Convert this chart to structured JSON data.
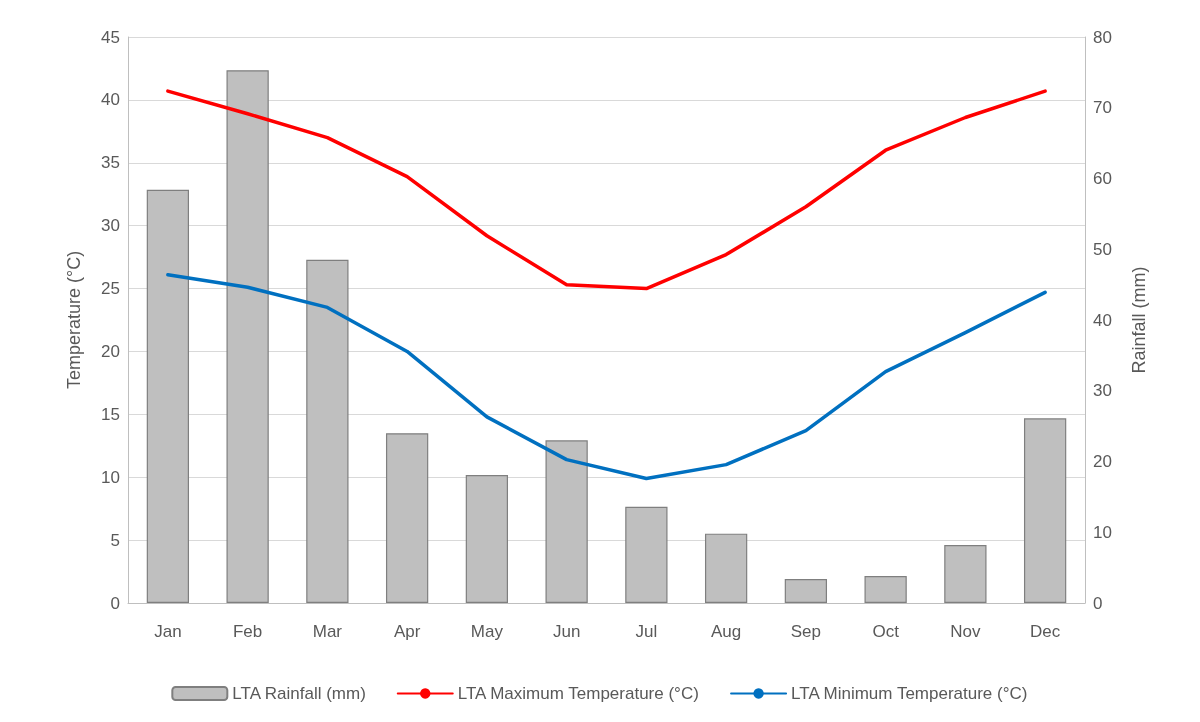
{
  "chart_data": {
    "type": "bar",
    "ylabel": "Temperature (°C)",
    "y2label": "Rainfall (mm)",
    "categories": [
      "Jan",
      "Feb",
      "Mar",
      "Apr",
      "May",
      "Jun",
      "Jul",
      "Aug",
      "Sep",
      "Oct",
      "Nov",
      "Dec"
    ],
    "series": [
      {
        "name": "LTA Rainfall (mm)",
        "axis": "y2",
        "color": "#bfbfbf",
        "values": [
          58.4,
          75.3,
          48.5,
          24.0,
          18.1,
          23.0,
          13.6,
          9.8,
          3.4,
          3.8,
          8.2,
          26.1
        ]
      },
      {
        "name": "LTA Maximum Temperature (°C)",
        "type": "line",
        "color": "#ff0000",
        "values": [
          40.7,
          38.9,
          37.0,
          33.9,
          29.2,
          25.3,
          25.0,
          27.7,
          31.5,
          36.0,
          38.6,
          40.7
        ]
      },
      {
        "name": "LTA Minimum Temperature (°C)",
        "type": "line",
        "color": "#0070c0",
        "values": [
          26.1,
          25.1,
          23.5,
          20.0,
          14.8,
          11.4,
          9.9,
          11.0,
          13.7,
          18.4,
          21.5,
          24.7
        ]
      }
    ],
    "ylim": [
      0,
      45
    ],
    "yticks": [
      0,
      5,
      10,
      15,
      20,
      25,
      30,
      35,
      40,
      45
    ],
    "y2lim": [
      0,
      80
    ],
    "y2ticks": [
      0,
      10,
      20,
      30,
      40,
      50,
      60,
      70,
      80
    ],
    "grid": "y",
    "legend": "bottom",
    "marker": "none",
    "line_style": "solid"
  }
}
